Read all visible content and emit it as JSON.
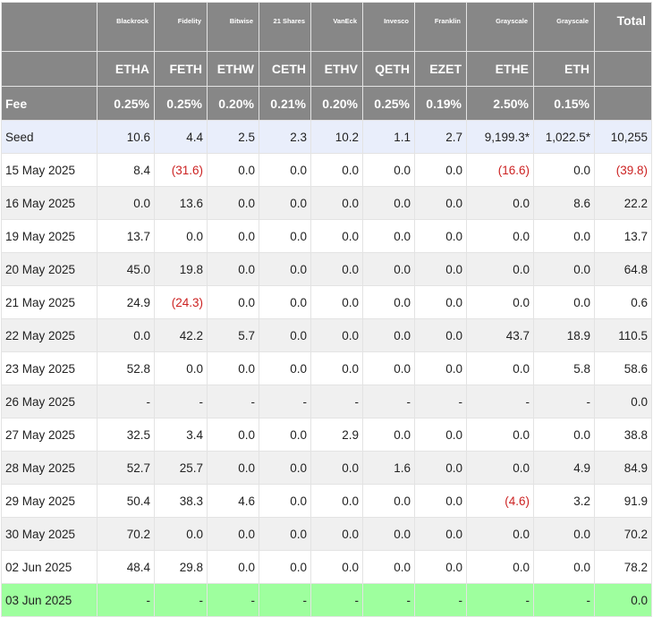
{
  "table": {
    "issuers": [
      "Blackrock",
      "Fidelity",
      "Bitwise",
      "21 Shares",
      "VanEck",
      "Invesco",
      "Franklin",
      "Grayscale",
      "Grayscale"
    ],
    "total_label": "Total",
    "tickers": [
      "ETHA",
      "FETH",
      "ETHW",
      "CETH",
      "ETHV",
      "QETH",
      "EZET",
      "ETHE",
      "ETH"
    ],
    "fee_label": "Fee",
    "fees": [
      "0.25%",
      "0.25%",
      "0.20%",
      "0.21%",
      "0.20%",
      "0.25%",
      "0.19%",
      "2.50%",
      "0.15%"
    ],
    "rows": [
      {
        "label": "Seed",
        "values": [
          "10.6",
          "4.4",
          "2.5",
          "2.3",
          "10.2",
          "1.1",
          "2.7",
          "9,199.3*",
          "1,022.5*"
        ],
        "total": "10,255",
        "style": "seed"
      },
      {
        "label": "15 May 2025",
        "values": [
          "8.4",
          "(31.6)",
          "0.0",
          "0.0",
          "0.0",
          "0.0",
          "0.0",
          "(16.6)",
          "0.0"
        ],
        "total": "(39.8)"
      },
      {
        "label": "16 May 2025",
        "values": [
          "0.0",
          "13.6",
          "0.0",
          "0.0",
          "0.0",
          "0.0",
          "0.0",
          "0.0",
          "8.6"
        ],
        "total": "22.2"
      },
      {
        "label": "19 May 2025",
        "values": [
          "13.7",
          "0.0",
          "0.0",
          "0.0",
          "0.0",
          "0.0",
          "0.0",
          "0.0",
          "0.0"
        ],
        "total": "13.7"
      },
      {
        "label": "20 May 2025",
        "values": [
          "45.0",
          "19.8",
          "0.0",
          "0.0",
          "0.0",
          "0.0",
          "0.0",
          "0.0",
          "0.0"
        ],
        "total": "64.8"
      },
      {
        "label": "21 May 2025",
        "values": [
          "24.9",
          "(24.3)",
          "0.0",
          "0.0",
          "0.0",
          "0.0",
          "0.0",
          "0.0",
          "0.0"
        ],
        "total": "0.6"
      },
      {
        "label": "22 May 2025",
        "values": [
          "0.0",
          "42.2",
          "5.7",
          "0.0",
          "0.0",
          "0.0",
          "0.0",
          "43.7",
          "18.9"
        ],
        "total": "110.5"
      },
      {
        "label": "23 May 2025",
        "values": [
          "52.8",
          "0.0",
          "0.0",
          "0.0",
          "0.0",
          "0.0",
          "0.0",
          "0.0",
          "5.8"
        ],
        "total": "58.6"
      },
      {
        "label": "26 May 2025",
        "values": [
          "-",
          "-",
          "-",
          "-",
          "-",
          "-",
          "-",
          "-",
          "-"
        ],
        "total": "0.0"
      },
      {
        "label": "27 May 2025",
        "values": [
          "32.5",
          "3.4",
          "0.0",
          "0.0",
          "2.9",
          "0.0",
          "0.0",
          "0.0",
          "0.0"
        ],
        "total": "38.8"
      },
      {
        "label": "28 May 2025",
        "values": [
          "52.7",
          "25.7",
          "0.0",
          "0.0",
          "0.0",
          "1.6",
          "0.0",
          "0.0",
          "4.9"
        ],
        "total": "84.9"
      },
      {
        "label": "29 May 2025",
        "values": [
          "50.4",
          "38.3",
          "4.6",
          "0.0",
          "0.0",
          "0.0",
          "0.0",
          "(4.6)",
          "3.2"
        ],
        "total": "91.9"
      },
      {
        "label": "30 May 2025",
        "values": [
          "70.2",
          "0.0",
          "0.0",
          "0.0",
          "0.0",
          "0.0",
          "0.0",
          "0.0",
          "0.0"
        ],
        "total": "70.2"
      },
      {
        "label": "02 Jun 2025",
        "values": [
          "48.4",
          "29.8",
          "0.0",
          "0.0",
          "0.0",
          "0.0",
          "0.0",
          "0.0",
          "0.0"
        ],
        "total": "78.2"
      },
      {
        "label": "03 Jun 2025",
        "values": [
          "-",
          "-",
          "-",
          "-",
          "-",
          "-",
          "-",
          "-",
          "-"
        ],
        "total": "0.0",
        "style": "latest"
      }
    ]
  },
  "colors": {
    "header_bg": "#878787",
    "negative": "#cc2222",
    "seed_row": "#e9eefb",
    "latest_row": "#9eff9e",
    "stripe": "#f0f0f0"
  }
}
